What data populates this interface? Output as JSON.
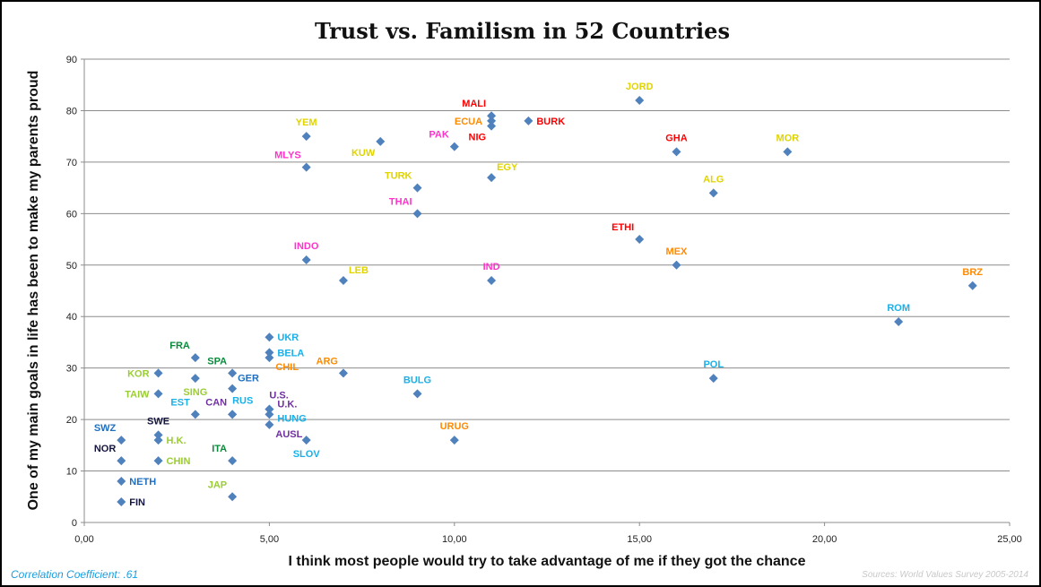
{
  "chart_data": {
    "type": "scatter",
    "title": "Trust vs. Familism in 52 Countries",
    "xlabel": "I think most people would try to take advantage of me if they got the chance",
    "ylabel": "One of my main goals in life has been to make my parents proud",
    "xlim": [
      0,
      25
    ],
    "ylim": [
      0,
      90
    ],
    "xticks": [
      "0,00",
      "5,00",
      "10,00",
      "15,00",
      "20,00",
      "25,00"
    ],
    "xtick_values": [
      0,
      5,
      10,
      15,
      20,
      25
    ],
    "yticks": [
      "0",
      "10",
      "20",
      "30",
      "40",
      "50",
      "60",
      "70",
      "80",
      "90"
    ],
    "ytick_values": [
      0,
      10,
      20,
      30,
      40,
      50,
      60,
      70,
      80,
      90
    ],
    "grid": "horizontal",
    "marker_color": "#4f81bd",
    "label_colors": {
      "yellow": "#e0d400",
      "red": "#ff0000",
      "orange": "#ff8a00",
      "magenta": "#ff33cc",
      "lightblue": "#1ab0e8",
      "blue": "#1f6fc0",
      "green": "#0b8a3c",
      "lightgreen": "#9acd32",
      "purple": "#7030a0",
      "navy": "#141440"
    },
    "points": [
      {
        "label": "JORD",
        "x": 15,
        "y": 82,
        "color": "yellow",
        "pos": "above"
      },
      {
        "label": "MALI",
        "x": 11,
        "y": 79,
        "color": "red",
        "pos": "above-left"
      },
      {
        "label": "ECUA",
        "x": 11,
        "y": 78,
        "color": "orange",
        "pos": "left"
      },
      {
        "label": "NIG",
        "x": 11,
        "y": 77,
        "color": "red",
        "pos": "below-left"
      },
      {
        "label": "BURK",
        "x": 12,
        "y": 78,
        "color": "red",
        "pos": "right"
      },
      {
        "label": "PAK",
        "x": 10,
        "y": 73,
        "color": "magenta",
        "pos": "above-left"
      },
      {
        "label": "KUW",
        "x": 8,
        "y": 74,
        "color": "yellow",
        "pos": "below-left"
      },
      {
        "label": "YEM",
        "x": 6,
        "y": 75,
        "color": "yellow",
        "pos": "above"
      },
      {
        "label": "MLYS",
        "x": 6,
        "y": 69,
        "color": "magenta",
        "pos": "above-left"
      },
      {
        "label": "GHA",
        "x": 16,
        "y": 72,
        "color": "red",
        "pos": "above"
      },
      {
        "label": "MOR",
        "x": 19,
        "y": 72,
        "color": "yellow",
        "pos": "above"
      },
      {
        "label": "EGY",
        "x": 11,
        "y": 67,
        "color": "yellow",
        "pos": "above-right"
      },
      {
        "label": "TURK",
        "x": 9,
        "y": 65,
        "color": "yellow",
        "pos": "above-left"
      },
      {
        "label": "THAI",
        "x": 9,
        "y": 60,
        "color": "magenta",
        "pos": "above-left"
      },
      {
        "label": "ALG",
        "x": 17,
        "y": 64,
        "color": "yellow",
        "pos": "above"
      },
      {
        "label": "ETHI",
        "x": 15,
        "y": 55,
        "color": "red",
        "pos": "above-left"
      },
      {
        "label": "MEX",
        "x": 16,
        "y": 50,
        "color": "orange",
        "pos": "above"
      },
      {
        "label": "INDO",
        "x": 6,
        "y": 51,
        "color": "magenta",
        "pos": "above"
      },
      {
        "label": "LEB",
        "x": 7,
        "y": 47,
        "color": "yellow",
        "pos": "above-right"
      },
      {
        "label": "IND",
        "x": 11,
        "y": 47,
        "color": "magenta",
        "pos": "above"
      },
      {
        "label": "BRZ",
        "x": 24,
        "y": 46,
        "color": "orange",
        "pos": "above"
      },
      {
        "label": "ROM",
        "x": 22,
        "y": 39,
        "color": "lightblue",
        "pos": "above"
      },
      {
        "label": "POL",
        "x": 17,
        "y": 28,
        "color": "lightblue",
        "pos": "above"
      },
      {
        "label": "UKR",
        "x": 5,
        "y": 36,
        "color": "lightblue",
        "pos": "right"
      },
      {
        "label": "BELA",
        "x": 5,
        "y": 33,
        "color": "lightblue",
        "pos": "right"
      },
      {
        "label": "CHIL",
        "x": 5,
        "y": 32,
        "color": "orange",
        "pos": "below-right"
      },
      {
        "label": "ARG",
        "x": 7,
        "y": 29,
        "color": "orange",
        "pos": "above-left"
      },
      {
        "label": "BULG",
        "x": 9,
        "y": 25,
        "color": "lightblue",
        "pos": "above"
      },
      {
        "label": "FRA",
        "x": 3,
        "y": 32,
        "color": "green",
        "pos": "above-left"
      },
      {
        "label": "KOR",
        "x": 2,
        "y": 29,
        "color": "lightgreen",
        "pos": "left"
      },
      {
        "label": "SPA",
        "x": 4,
        "y": 29,
        "color": "green",
        "pos": "above-left"
      },
      {
        "label": "SING",
        "x": 3,
        "y": 28,
        "color": "lightgreen",
        "pos": "below"
      },
      {
        "label": "GER",
        "x": 4,
        "y": 26,
        "color": "blue",
        "pos": "above-right"
      },
      {
        "label": "TAIW",
        "x": 2,
        "y": 25,
        "color": "lightgreen",
        "pos": "left"
      },
      {
        "label": "RUS",
        "x": 4,
        "y": 21,
        "color": "lightblue",
        "pos": "above-right2"
      },
      {
        "label": "CAN",
        "x": 4,
        "y": 21,
        "color": "purple",
        "pos": "above-left"
      },
      {
        "label": "EST",
        "x": 3,
        "y": 21,
        "color": "lightblue",
        "pos": "above-left"
      },
      {
        "label": "U.S.",
        "x": 5,
        "y": 22,
        "color": "purple",
        "pos": "above-right2"
      },
      {
        "label": "U.K.",
        "x": 5,
        "y": 22,
        "color": "purple",
        "pos": "right"
      },
      {
        "label": "HUNG",
        "x": 5,
        "y": 21,
        "color": "lightblue",
        "pos": "right"
      },
      {
        "label": "AUSL",
        "x": 5,
        "y": 19,
        "color": "purple",
        "pos": "below-right"
      },
      {
        "label": "SLOV",
        "x": 6,
        "y": 16,
        "color": "lightblue",
        "pos": "below"
      },
      {
        "label": "URUG",
        "x": 10,
        "y": 16,
        "color": "orange",
        "pos": "above"
      },
      {
        "label": "SWZ",
        "x": 1,
        "y": 16,
        "color": "blue",
        "pos": "above-left"
      },
      {
        "label": "SWE",
        "x": 2,
        "y": 17,
        "color": "navy",
        "pos": "above"
      },
      {
        "label": "H.K.",
        "x": 2,
        "y": 16,
        "color": "lightgreen",
        "pos": "right"
      },
      {
        "label": "NOR",
        "x": 1,
        "y": 12,
        "color": "navy",
        "pos": "above-left"
      },
      {
        "label": "CHIN",
        "x": 2,
        "y": 12,
        "color": "lightgreen",
        "pos": "right"
      },
      {
        "label": "ITA",
        "x": 4,
        "y": 12,
        "color": "green",
        "pos": "above-left"
      },
      {
        "label": "NETH",
        "x": 1,
        "y": 8,
        "color": "blue",
        "pos": "right"
      },
      {
        "label": "FIN",
        "x": 1,
        "y": 4,
        "color": "navy",
        "pos": "right"
      },
      {
        "label": "JAP",
        "x": 4,
        "y": 5,
        "color": "lightgreen",
        "pos": "above-left"
      }
    ]
  },
  "footer": {
    "correlation": "Correlation Coefficient: .61",
    "source": "Sources: World Values Survey 2005-2014"
  }
}
